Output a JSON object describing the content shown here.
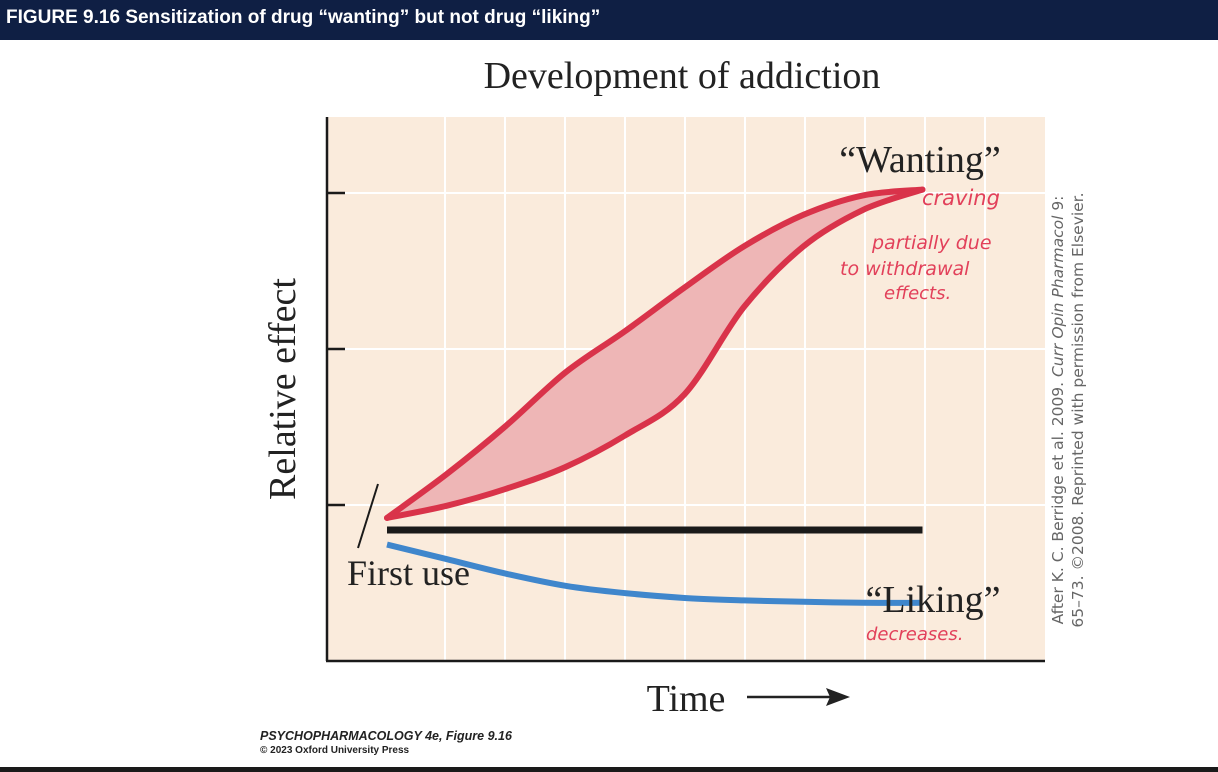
{
  "header": {
    "title": "FIGURE 9.16  Sensitization of drug “wanting” but not drug “liking”"
  },
  "chart_data": {
    "type": "line",
    "title": "Development of addiction",
    "xlabel": "Time",
    "ylabel": "Relative effect",
    "x": [
      0,
      1,
      2,
      3,
      4,
      5,
      6,
      7,
      8,
      9
    ],
    "xlim": [
      0,
      10
    ],
    "ylim": [
      0,
      10
    ],
    "series": [
      {
        "name": "“Wanting”",
        "kind": "band",
        "color": "#d9334a",
        "fill": "#eeb6b6",
        "upper": [
          2.95,
          3.85,
          4.85,
          5.95,
          6.8,
          7.7,
          8.55,
          9.2,
          9.6,
          9.72
        ],
        "lower": [
          2.95,
          3.2,
          3.55,
          4.0,
          4.65,
          5.5,
          7.3,
          8.55,
          9.3,
          9.72
        ]
      },
      {
        "name": "baseline",
        "kind": "line",
        "color": "#1a1a1a",
        "values": [
          2.7,
          2.7,
          2.7,
          2.7,
          2.7,
          2.7,
          2.7,
          2.7,
          2.7,
          2.7
        ]
      },
      {
        "name": "“Liking”",
        "kind": "line",
        "color": "#3f86cc",
        "values": [
          2.4,
          2.1,
          1.8,
          1.55,
          1.4,
          1.3,
          1.25,
          1.22,
          1.2,
          1.2
        ]
      }
    ],
    "annotations": {
      "first_use": "First use",
      "wanting_label": "“Wanting”",
      "liking_label": "“Liking”",
      "handwritten_craving": "craving",
      "handwritten_partial": [
        "partially due",
        "to withdrawal",
        "effects."
      ],
      "handwritten_decreases": "decreases."
    },
    "source_credit": [
      "After K. C. Berridge et al. 2009. ",
      "Curr Opin Pharmacol",
      " 9:",
      "65–73. ©2008. Reprinted with permission from Elsevier."
    ]
  },
  "credits": {
    "book": "PSYCHOPHARMACOLOGY 4e, Figure 9.16",
    "press": "© 2023 Oxford University Press"
  },
  "colors": {
    "header_bg": "#0f1f44",
    "plot_bg": "#faebdc",
    "grid": "#ffffff",
    "wanting": "#d9334a",
    "wanting_fill": "#eeb6b6",
    "liking": "#3f86cc",
    "baseline": "#1a1a1a",
    "handwriting": "#e2405a"
  }
}
